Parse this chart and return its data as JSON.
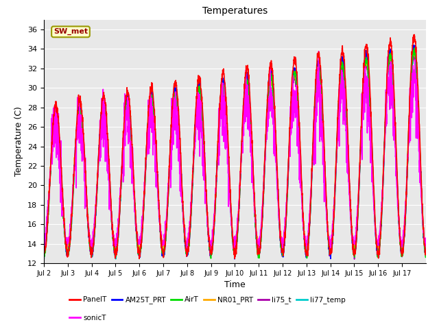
{
  "title": "Temperatures",
  "xlabel": "Time",
  "ylabel": "Temperature (C)",
  "ylim": [
    12,
    37
  ],
  "yticks": [
    12,
    14,
    16,
    18,
    20,
    22,
    24,
    26,
    28,
    30,
    32,
    34,
    36
  ],
  "xtick_labels": [
    "Jul 2",
    "Jul 3",
    "Jul 4",
    "Jul 5",
    "Jul 6",
    "Jul 7",
    "Jul 8",
    "Jul 9",
    "Jul 10",
    "Jul 11",
    "Jul 12",
    "Jul 13",
    "Jul 14",
    "Jul 15",
    "Jul 16",
    "Jul 17"
  ],
  "annotation_text": "SW_met",
  "annotation_facecolor": "#ffffcc",
  "annotation_edgecolor": "#999900",
  "annotation_textcolor": "#990000",
  "series": {
    "PanelT": {
      "color": "#ff0000",
      "lw": 1.2
    },
    "AM25T_PRT": {
      "color": "#0000ff",
      "lw": 1.2
    },
    "AirT": {
      "color": "#00dd00",
      "lw": 1.2
    },
    "NR01_PRT": {
      "color": "#ffaa00",
      "lw": 1.2
    },
    "li75_t": {
      "color": "#aa00aa",
      "lw": 1.2
    },
    "li77_temp": {
      "color": "#00cccc",
      "lw": 1.2
    },
    "sonicT": {
      "color": "#ff00ff",
      "lw": 1.2
    }
  },
  "bg_color": "#e8e8e8",
  "grid_color": "#ffffff",
  "n_days": 16,
  "points_per_day": 144
}
